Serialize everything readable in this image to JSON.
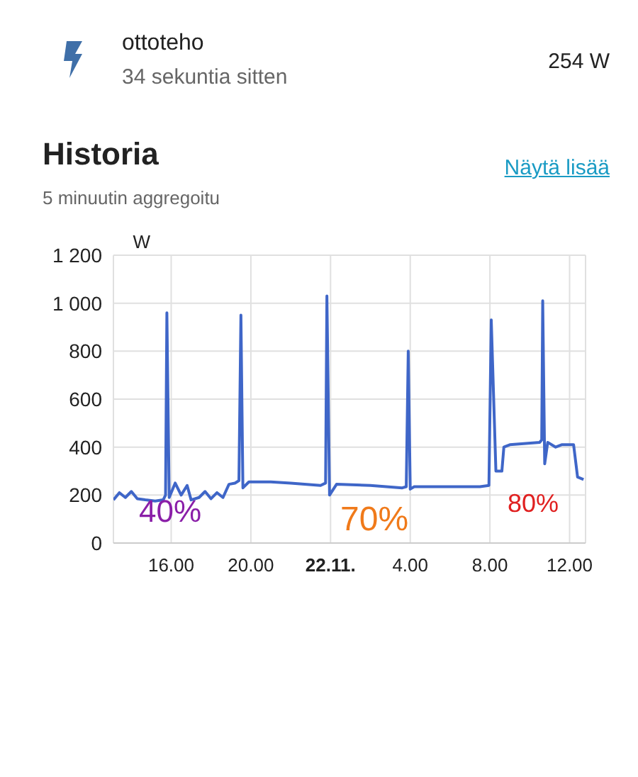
{
  "chart_data": {
    "type": "line",
    "title": "Historia",
    "subtitle": "5 minuutin aggregoitu",
    "ylabel": "W",
    "annotations": [
      "ottoteho",
      "34 sekuntia sitten",
      "254 W",
      "Näytä lisää",
      "40%",
      "70%",
      "80%"
    ],
    "xlim": [
      "--11-21T13:06",
      "--11-22T12:48"
    ],
    "xticks": [
      {
        "value": "--11-21T16:00",
        "label": "16.00"
      },
      {
        "value": "--11-21T20:00",
        "label": "20.00"
      },
      {
        "value": "--11-22T00:00",
        "label": "22.11."
      },
      {
        "value": "--11-22T04:00",
        "label": "4.00"
      },
      {
        "value": "--11-22T08:00",
        "label": "8.00"
      },
      {
        "value": "--11-22T12:00",
        "label": "12.00"
      }
    ],
    "ylim": [
      0,
      1200
    ],
    "yticks": [
      0,
      200,
      400,
      600,
      800,
      {
        "value": 1000,
        "label": "1 000"
      },
      {
        "value": 1200,
        "label": "1 200"
      }
    ],
    "grid": true,
    "marker": "none",
    "line_style": "solid",
    "series": [
      {
        "color": "#3f66c8",
        "x": [
          "--11-21T13:06",
          "--11-21T13:24",
          "--11-21T13:42",
          "--11-21T14:00",
          "--11-21T14:18",
          "--11-21T14:42",
          "--11-21T15:12",
          "--11-21T15:36",
          "--11-21T15:43",
          "--11-21T15:47",
          "--11-21T15:54",
          "--11-21T16:12",
          "--11-21T16:30",
          "--11-21T16:48",
          "--11-21T17:00",
          "--11-21T17:24",
          "--11-21T17:42",
          "--11-21T18:00",
          "--11-21T18:18",
          "--11-21T18:36",
          "--11-21T18:54",
          "--11-21T19:12",
          "--11-21T19:24",
          "--11-21T19:30",
          "--11-21T19:36",
          "--11-21T19:54",
          "--11-21T21:00",
          "--11-21T22:00",
          "--11-21T23:30",
          "--11-21T23:45",
          "--11-21T23:49",
          "--11-21T23:57",
          "--11-22T00:18",
          "--11-22T02:00",
          "--11-22T03:36",
          "--11-22T03:48",
          "--11-22T03:54",
          "--11-22T04:00",
          "--11-22T04:12",
          "--11-22T07:30",
          "--11-22T07:57",
          "--11-22T08:04",
          "--11-22T08:18",
          "--11-22T08:36",
          "--11-22T08:42",
          "--11-22T09:00",
          "--11-22T10:30",
          "--11-22T10:36",
          "--11-22T10:39",
          "--11-22T10:45",
          "--11-22T10:54",
          "--11-22T11:18",
          "--11-22T11:36",
          "--11-22T12:12",
          "--11-22T12:24",
          "--11-22T12:42"
        ],
        "values": [
          180,
          210,
          190,
          215,
          185,
          180,
          175,
          180,
          200,
          960,
          190,
          250,
          200,
          240,
          180,
          190,
          215,
          185,
          210,
          190,
          245,
          250,
          260,
          950,
          230,
          255,
          255,
          250,
          240,
          250,
          1030,
          200,
          245,
          240,
          230,
          235,
          800,
          225,
          235,
          235,
          240,
          930,
          300,
          300,
          400,
          410,
          420,
          430,
          1010,
          330,
          420,
          400,
          410,
          410,
          275,
          265
        ]
      }
    ]
  }
}
